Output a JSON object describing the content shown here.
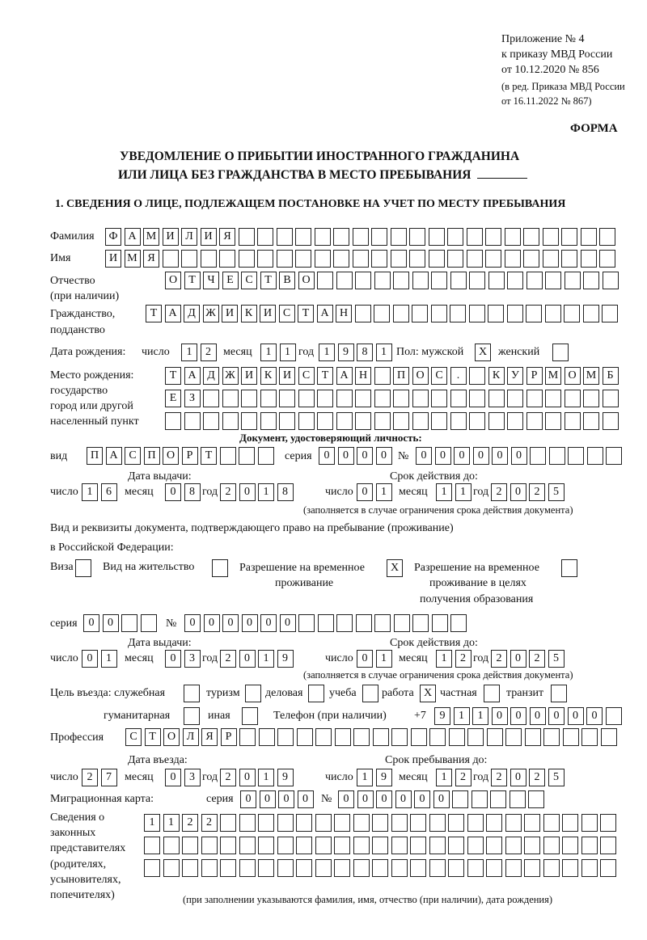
{
  "header": {
    "appendix": [
      "Приложение № 4",
      "к приказу МВД России",
      "от 10.12.2020 № 856"
    ],
    "revision": [
      "(в ред. Приказа МВД России",
      "от 16.11.2022 № 867)"
    ],
    "form_label": "ФОРМА",
    "title_line1": "УВЕДОМЛЕНИЕ О ПРИБЫТИИ ИНОСТРАННОГО ГРАЖДАНИНА",
    "title_line2": "ИЛИ ЛИЦА БЕЗ ГРАЖДАНСТВА В МЕСТО ПРЕБЫВАНИЯ",
    "section1": "1. СВЕДЕНИЯ О ЛИЦЕ, ПОДЛЕЖАЩЕМ ПОСТАНОВКЕ НА УЧЕТ ПО МЕСТУ ПРЕБЫВАНИЯ"
  },
  "person": {
    "surname_label": "Фамилия",
    "surname": "ФАМИЛИЯ",
    "name_label": "Имя",
    "name": "ИМЯ",
    "patronymic_label": [
      "Отчество",
      "(при наличии)"
    ],
    "patronymic": "ОТЧЕСТВО",
    "citizenship_label": [
      "Гражданство,",
      "подданство"
    ],
    "citizenship": "ТАДЖИКИСТАН",
    "birth_date_label": "Дата рождения:",
    "day_label": "число",
    "month_label": "месяц",
    "year_label": "год",
    "birth_day": "12",
    "birth_month": "11",
    "birth_year": "1981",
    "sex_label": "Пол: мужской",
    "female_label": "женский",
    "male": "X",
    "female": "",
    "birthplace_label": [
      "Место рождения:",
      "государство",
      "город или другой",
      "населенный пункт"
    ],
    "birthplace_rows": [
      "ТАДЖИКИСТАН ПОС. КУРМОМБ",
      "ЕЗ",
      ""
    ]
  },
  "identity_doc": {
    "heading": "Документ, удостоверяющий личность:",
    "kind_label": "вид",
    "kind": "ПАСПОРТ",
    "series_label": "серия",
    "series": "0000",
    "number_label": "№",
    "number": "000000",
    "issue_label": "Дата выдачи:",
    "valid_label": "Срок действия до:",
    "day_label": "число",
    "month_label": "месяц",
    "year_label": "год",
    "issue_day": "16",
    "issue_month": "08",
    "issue_year": "2018",
    "valid_day": "01",
    "valid_month": "11",
    "valid_year": "2025",
    "note": "(заполняется в случае ограничения срока действия документа)"
  },
  "stay_doc": {
    "label_line1": "Вид и реквизиты документа, подтверждающего право на пребывание (проживание)",
    "label_line2": "в Российской Федерации:",
    "visa_label": "Виза",
    "visa": "",
    "residence_label": "Вид на жительство",
    "residence": "",
    "temp_label": [
      "Разрешение на временное",
      "проживание"
    ],
    "temp": "X",
    "edu_label": [
      "Разрешение на временное",
      "проживание в целях",
      "получения образования"
    ],
    "edu": "",
    "series_label": "серия",
    "series": "00",
    "number_label": "№",
    "number": "000000",
    "issue_label": "Дата выдачи:",
    "valid_label": "Срок действия до:",
    "day_label": "число",
    "month_label": "месяц",
    "year_label": "год",
    "issue_day": "01",
    "issue_month": "03",
    "issue_year": "2019",
    "valid_day": "01",
    "valid_month": "12",
    "valid_year": "2025",
    "note": "(заполняется в случае ограничения срока действия документа)"
  },
  "purpose": {
    "label": "Цель въезда: служебная",
    "options": [
      {
        "label": "туризм",
        "value": ""
      },
      {
        "label": "деловая",
        "value": ""
      },
      {
        "label": "учеба",
        "value": ""
      },
      {
        "label": "работа",
        "value": ""
      },
      {
        "label": "частная",
        "value": "X"
      },
      {
        "label": "транзит",
        "value": ""
      },
      {
        "label": "гуманитарная",
        "value": ""
      },
      {
        "label": "иная",
        "value": ""
      }
    ],
    "service": ""
  },
  "phone": {
    "label": "Телефон (при наличии)",
    "prefix": "+7",
    "value": "911000000"
  },
  "profession": {
    "label": "Профессия",
    "value": "СТОЛЯР"
  },
  "entry": {
    "entry_label": "Дата въезда:",
    "stay_label": "Срок пребывания до:",
    "day_label": "число",
    "month_label": "месяц",
    "year_label": "год",
    "entry_day": "27",
    "entry_month": "03",
    "entry_year": "2019",
    "stay_day": "19",
    "stay_month": "12",
    "stay_year": "2025"
  },
  "migration_card": {
    "label": "Миграционная карта:",
    "series_label": "серия",
    "series": "0000",
    "number_label": "№",
    "number": "000000"
  },
  "representatives": {
    "label": [
      "Сведения о",
      "законных",
      "представителях",
      "(родителях,",
      "усыновителях,",
      "попечителях)"
    ],
    "rows": [
      "1122",
      "",
      ""
    ],
    "note": "(при заполнении указываются фамилия, имя, отчество (при наличии), дата рождения)"
  }
}
